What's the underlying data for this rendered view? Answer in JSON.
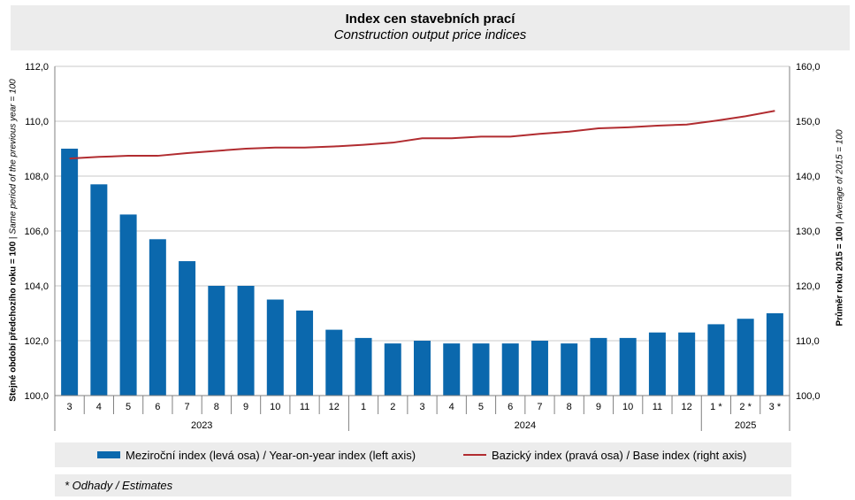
{
  "chart_data": {
    "type": "bar+line",
    "title": "Index cen stavebních prací",
    "subtitle": "Construction output price indices",
    "categories": [
      "3",
      "4",
      "5",
      "6",
      "7",
      "8",
      "9",
      "10",
      "11",
      "12",
      "1",
      "2",
      "3",
      "4",
      "5",
      "6",
      "7",
      "8",
      "9",
      "10",
      "11",
      "12",
      "1 *",
      "2 *",
      "3 *"
    ],
    "year_groups": [
      {
        "label": "2023",
        "count": 10
      },
      {
        "label": "2024",
        "count": 12
      },
      {
        "label": "2025",
        "count": 3
      }
    ],
    "series": [
      {
        "name": "Meziroční index (levá osa) / Year-on-year index (left axis)",
        "type": "bar",
        "axis": "left",
        "color": "#0b68ad",
        "values": [
          109.0,
          107.7,
          106.6,
          105.7,
          104.9,
          104.0,
          104.0,
          103.5,
          103.1,
          102.4,
          102.1,
          101.9,
          102.0,
          101.9,
          101.9,
          101.9,
          102.0,
          101.9,
          102.1,
          102.1,
          102.3,
          102.3,
          102.6,
          102.8,
          103.0
        ]
      },
      {
        "name": "Bazický index (pravá osa) / Base index (right axis)",
        "type": "line",
        "axis": "right",
        "color": "#b12c30",
        "values": [
          143.2,
          143.5,
          143.7,
          143.7,
          144.2,
          144.6,
          145.0,
          145.2,
          145.2,
          145.4,
          145.7,
          146.1,
          146.9,
          146.9,
          147.2,
          147.2,
          147.7,
          148.1,
          148.7,
          148.9,
          149.2,
          149.4,
          150.1,
          150.9,
          151.9
        ]
      }
    ],
    "left_axis": {
      "min": 100,
      "max": 112,
      "step": 2,
      "ticks": [
        "100,0",
        "102,0",
        "104,0",
        "106,0",
        "108,0",
        "110,0",
        "112,0"
      ],
      "title_bold": "Stejné období předchozího roku = 100",
      "title_sep": " | ",
      "title_italic": "Same period of  the previous year = 100"
    },
    "right_axis": {
      "min": 100,
      "max": 160,
      "step": 10,
      "ticks": [
        "100,0",
        "110,0",
        "120,0",
        "130,0",
        "140,0",
        "150,0",
        "160,0"
      ],
      "title_bold": "Průměr roku 2015 = 100",
      "title_sep": " | ",
      "title_italic": "Average of 2015 = 100"
    },
    "grid": true,
    "legend_position": "bottom"
  },
  "note": "* Odhady  / Estimates",
  "colors": {
    "bar": "#0b68ad",
    "line": "#b12c30",
    "panel": "#ececec",
    "grid": "#c8c8c8"
  }
}
